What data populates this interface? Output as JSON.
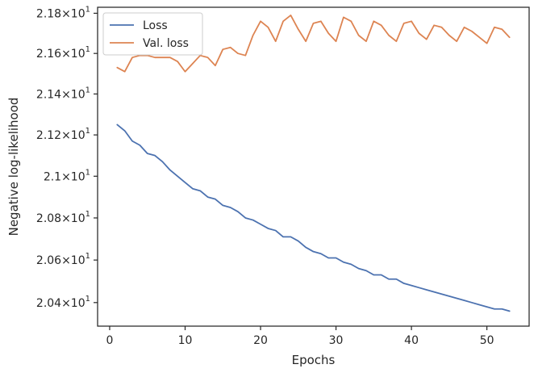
{
  "chart_data": {
    "type": "line",
    "title": "",
    "xlabel": "Epochs",
    "ylabel": "Negative log-likelihood",
    "y_scale": "log",
    "xlim": [
      -1.6,
      55.6
    ],
    "ylim": [
      20.29,
      21.83
    ],
    "x_ticks": [
      0,
      10,
      20,
      30,
      40,
      50
    ],
    "x_tick_labels": [
      "0",
      "10",
      "20",
      "30",
      "40",
      "50"
    ],
    "y_ticks": [
      20.4,
      20.6,
      20.8,
      21.0,
      21.2,
      21.4,
      21.6,
      21.8
    ],
    "y_tick_labels": [
      {
        "base": "2.04",
        "exp": "1"
      },
      {
        "base": "2.06",
        "exp": "1"
      },
      {
        "base": "2.08",
        "exp": "1"
      },
      {
        "base": "2.1",
        "exp": "1"
      },
      {
        "base": "2.12",
        "exp": "1"
      },
      {
        "base": "2.14",
        "exp": "1"
      },
      {
        "base": "2.16",
        "exp": "1"
      },
      {
        "base": "2.18",
        "exp": "1"
      }
    ],
    "y_tick_times": "×10",
    "grid": false,
    "legend_position": "top-left",
    "x": [
      1,
      2,
      3,
      4,
      5,
      6,
      7,
      8,
      9,
      10,
      11,
      12,
      13,
      14,
      15,
      16,
      17,
      18,
      19,
      20,
      21,
      22,
      23,
      24,
      25,
      26,
      27,
      28,
      29,
      30,
      31,
      32,
      33,
      34,
      35,
      36,
      37,
      38,
      39,
      40,
      41,
      42,
      43,
      44,
      45,
      46,
      47,
      48,
      49,
      50,
      51,
      52,
      53
    ],
    "series": [
      {
        "name": "Loss",
        "color": "#4c72b0",
        "values": [
          21.25,
          21.22,
          21.17,
          21.15,
          21.11,
          21.1,
          21.07,
          21.03,
          21.0,
          20.97,
          20.94,
          20.93,
          20.9,
          20.89,
          20.86,
          20.85,
          20.83,
          20.8,
          20.79,
          20.77,
          20.75,
          20.74,
          20.71,
          20.71,
          20.69,
          20.66,
          20.64,
          20.63,
          20.61,
          20.61,
          20.59,
          20.58,
          20.56,
          20.55,
          20.53,
          20.53,
          20.51,
          20.51,
          20.49,
          20.48,
          20.47,
          20.46,
          20.45,
          20.44,
          20.43,
          20.42,
          20.41,
          20.4,
          20.39,
          20.38,
          20.37,
          20.37,
          20.36
        ]
      },
      {
        "name": "Val. loss",
        "color": "#dd8452",
        "values": [
          21.53,
          21.51,
          21.58,
          21.59,
          21.59,
          21.58,
          21.58,
          21.58,
          21.56,
          21.51,
          21.55,
          21.59,
          21.58,
          21.54,
          21.62,
          21.63,
          21.6,
          21.59,
          21.69,
          21.76,
          21.73,
          21.66,
          21.76,
          21.79,
          21.72,
          21.66,
          21.75,
          21.76,
          21.7,
          21.66,
          21.78,
          21.76,
          21.69,
          21.66,
          21.76,
          21.74,
          21.69,
          21.66,
          21.75,
          21.76,
          21.7,
          21.67,
          21.74,
          21.73,
          21.69,
          21.66,
          21.73,
          21.71,
          21.68,
          21.65,
          21.73,
          21.72,
          21.68
        ]
      }
    ]
  }
}
